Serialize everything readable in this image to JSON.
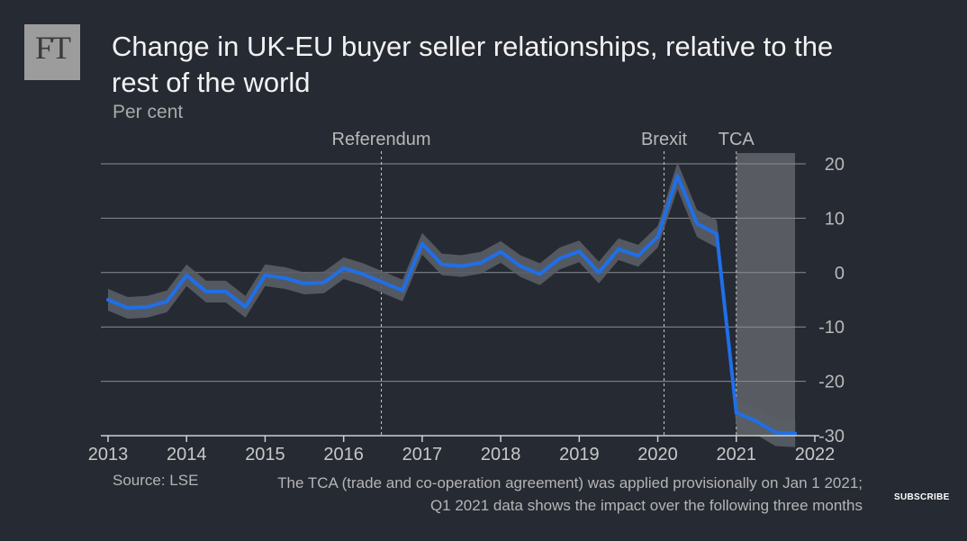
{
  "logo": "FT",
  "header": {
    "title": "Change in UK-EU buyer seller relationships, relative to the rest of the world",
    "subtitle": "Per cent"
  },
  "footer": {
    "source": "Source: LSE",
    "note_line1": "The TCA (trade and co-operation agreement) was applied provisionally on Jan 1 2021;",
    "note_line2": "Q1 2021 data shows the impact over the following three months"
  },
  "subscribe_label": "SUBSCRIBE",
  "colors": {
    "background": "#262a33",
    "line": "#1f6fe8",
    "band": "#5a5e66",
    "tca_shade": "#6a6d73",
    "grid": "#8a8d93"
  },
  "chart_data": {
    "type": "line",
    "title": "Change in UK-EU buyer seller relationships, relative to the rest of the world",
    "ylabel": "Per cent",
    "xlim": [
      2013,
      2022
    ],
    "ylim": [
      -30,
      20
    ],
    "yticks": [
      20,
      10,
      0,
      -10,
      -20,
      -30
    ],
    "xticks": [
      2013,
      2014,
      2015,
      2016,
      2017,
      2018,
      2019,
      2020,
      2021,
      2022
    ],
    "grid": true,
    "series": [
      {
        "x": [
          2013.0,
          2013.25,
          2013.5,
          2013.75,
          2014.0,
          2014.25,
          2014.5,
          2014.75,
          2015.0,
          2015.25,
          2015.5,
          2015.75,
          2016.0,
          2016.25,
          2016.5,
          2016.75,
          2017.0,
          2017.25,
          2017.5,
          2017.75,
          2018.0,
          2018.25,
          2018.5,
          2018.75,
          2019.0,
          2019.25,
          2019.5,
          2019.75,
          2020.0,
          2020.25,
          2020.5,
          2020.75,
          2021.0,
          2021.25,
          2021.5,
          2021.75
        ],
        "values": [
          -5,
          -6.5,
          -6.3,
          -5.3,
          -0.5,
          -3.5,
          -3.5,
          -6.3,
          -0.5,
          -1,
          -2,
          -1.8,
          0.8,
          -0.3,
          -1.8,
          -3.3,
          5.3,
          1.5,
          1.2,
          1.8,
          3.8,
          1.2,
          -0.3,
          2.6,
          3.9,
          0,
          4.3,
          3.1,
          6.6,
          17.8,
          9,
          7.1,
          -25.8,
          -27.3,
          -29.4,
          -29.6
        ],
        "band_upper": [
          -3,
          -4.5,
          -4.3,
          -3.3,
          1.5,
          -1.5,
          -1.5,
          -4.3,
          1.5,
          1,
          0,
          0.2,
          2.8,
          1.7,
          0.2,
          -1.3,
          7.3,
          3.5,
          3.2,
          3.8,
          5.8,
          3.2,
          1.7,
          4.6,
          5.9,
          2,
          6.3,
          5.1,
          8.6,
          20.3,
          11.5,
          9.6,
          -23.3,
          -24.8,
          -26.9,
          -27.1
        ],
        "band_lower": [
          -7,
          -8.5,
          -8.3,
          -7.3,
          -2.5,
          -5.5,
          -5.5,
          -8.3,
          -2.5,
          -3,
          -4,
          -3.8,
          -1.2,
          -2.3,
          -3.8,
          -5.3,
          3.3,
          -0.5,
          -0.8,
          -0.2,
          1.8,
          -0.8,
          -2.3,
          0.6,
          1.9,
          -2,
          2.3,
          1.1,
          4.6,
          15.3,
          6.5,
          4.6,
          -28.3,
          -29.8,
          -31.9,
          -32.1
        ]
      }
    ],
    "annotations": [
      {
        "label": "Referendum",
        "x": 2016.48
      },
      {
        "label": "Brexit",
        "x": 2020.08
      },
      {
        "label": "TCA",
        "x": 2021.0
      }
    ],
    "shaded_region": {
      "label": "TCA",
      "x_start": 2021.0,
      "x_end": 2021.75
    }
  }
}
